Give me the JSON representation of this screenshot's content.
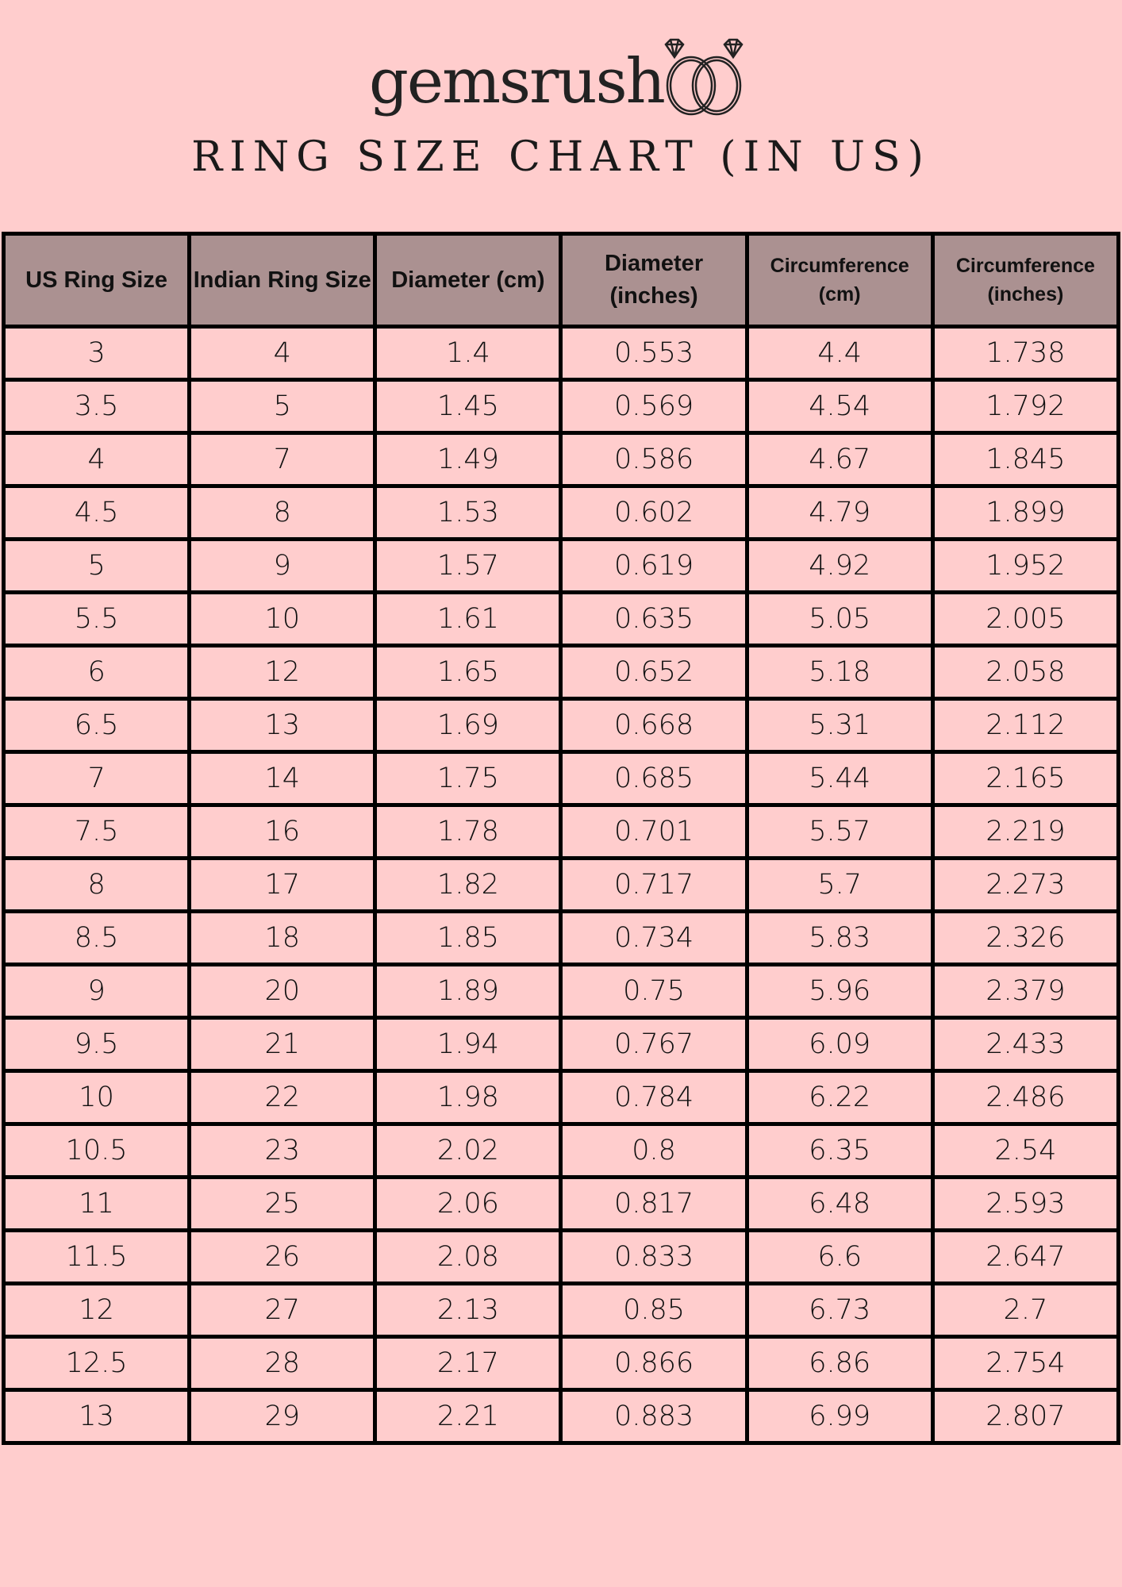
{
  "brand": {
    "name": "gemsrush",
    "logo_icon": "diamond-rings-icon"
  },
  "title": "RING SIZE CHART (IN US)",
  "colors": {
    "background": "#ffcdcd",
    "header": "#ab9191",
    "border": "#000000"
  },
  "table": {
    "headers": [
      "US Ring Size",
      "Indian Ring Size",
      "Diameter (cm)",
      "Diameter (inches)",
      "Circumference (cm)",
      "Circumference (inches)"
    ],
    "rows": [
      [
        "3",
        "4",
        "1.4",
        "0.553",
        "4.4",
        "1.738"
      ],
      [
        "3.5",
        "5",
        "1.45",
        "0.569",
        "4.54",
        "1.792"
      ],
      [
        "4",
        "7",
        "1.49",
        "0.586",
        "4.67",
        "1.845"
      ],
      [
        "4.5",
        "8",
        "1.53",
        "0.602",
        "4.79",
        "1.899"
      ],
      [
        "5",
        "9",
        "1.57",
        "0.619",
        "4.92",
        "1.952"
      ],
      [
        "5.5",
        "10",
        "1.61",
        "0.635",
        "5.05",
        "2.005"
      ],
      [
        "6",
        "12",
        "1.65",
        "0.652",
        "5.18",
        "2.058"
      ],
      [
        "6.5",
        "13",
        "1.69",
        "0.668",
        "5.31",
        "2.112"
      ],
      [
        "7",
        "14",
        "1.75",
        "0.685",
        "5.44",
        "2.165"
      ],
      [
        "7.5",
        "16",
        "1.78",
        "0.701",
        "5.57",
        "2.219"
      ],
      [
        "8",
        "17",
        "1.82",
        "0.717",
        "5.7",
        "2.273"
      ],
      [
        "8.5",
        "18",
        "1.85",
        "0.734",
        "5.83",
        "2.326"
      ],
      [
        "9",
        "20",
        "1.89",
        "0.75",
        "5.96",
        "2.379"
      ],
      [
        "9.5",
        "21",
        "1.94",
        "0.767",
        "6.09",
        "2.433"
      ],
      [
        "10",
        "22",
        "1.98",
        "0.784",
        "6.22",
        "2.486"
      ],
      [
        "10.5",
        "23",
        "2.02",
        "0.8",
        "6.35",
        "2.54"
      ],
      [
        "11",
        "25",
        "2.06",
        "0.817",
        "6.48",
        "2.593"
      ],
      [
        "11.5",
        "26",
        "2.08",
        "0.833",
        "6.6",
        "2.647"
      ],
      [
        "12",
        "27",
        "2.13",
        "0.85",
        "6.73",
        "2.7"
      ],
      [
        "12.5",
        "28",
        "2.17",
        "0.866",
        "6.86",
        "2.754"
      ],
      [
        "13",
        "29",
        "2.21",
        "0.883",
        "6.99",
        "2.807"
      ]
    ]
  }
}
